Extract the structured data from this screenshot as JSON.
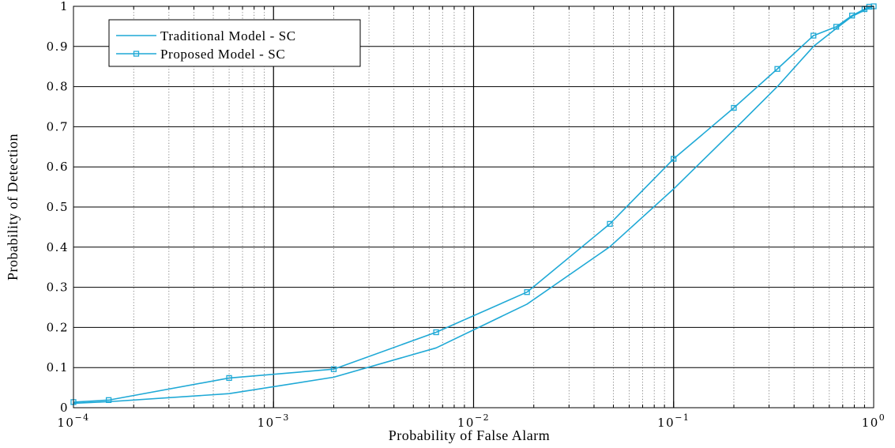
{
  "chart_data": {
    "type": "line",
    "xscale": "log",
    "xlim": [
      0.0001,
      1
    ],
    "ylim": [
      0,
      1
    ],
    "grid": true,
    "legend_position": "top-left",
    "xlabel": "Probability of False Alarm",
    "ylabel": "Probability of Detection",
    "x_tick_labels": [
      {
        "base": "10",
        "exp": "−4"
      },
      {
        "base": "10",
        "exp": "−3"
      },
      {
        "base": "10",
        "exp": "−2"
      },
      {
        "base": "10",
        "exp": "−1"
      },
      {
        "base": "10",
        "exp": "0"
      }
    ],
    "y_tick_labels": [
      "0",
      "0.1",
      "0.2",
      "0.3",
      "0.4",
      "0.5",
      "0.6",
      "0.7",
      "0.8",
      "0.9",
      "1"
    ],
    "colors": {
      "line": "#1fa9d6"
    },
    "series": [
      {
        "name": "Traditional Model - SC",
        "marker": "none",
        "points": [
          [
            0.0001,
            0.011
          ],
          [
            0.00015,
            0.015
          ],
          [
            0.0006,
            0.035
          ],
          [
            0.002,
            0.076
          ],
          [
            0.0065,
            0.149
          ],
          [
            0.0185,
            0.258
          ],
          [
            0.048,
            0.401
          ],
          [
            0.1,
            0.545
          ],
          [
            0.2,
            0.692
          ],
          [
            0.33,
            0.8
          ],
          [
            0.5,
            0.9
          ],
          [
            0.65,
            0.945
          ],
          [
            0.78,
            0.975
          ],
          [
            0.9,
            0.99
          ],
          [
            0.98,
            0.999
          ],
          [
            1.0,
            1.0
          ]
        ]
      },
      {
        "name": "Proposed Model - SC",
        "marker": "square",
        "points": [
          [
            0.0001,
            0.014
          ],
          [
            0.00015,
            0.019
          ],
          [
            0.0006,
            0.074
          ],
          [
            0.002,
            0.096
          ],
          [
            0.0065,
            0.188
          ],
          [
            0.0185,
            0.288
          ],
          [
            0.048,
            0.458
          ],
          [
            0.1,
            0.62
          ],
          [
            0.2,
            0.747
          ],
          [
            0.33,
            0.844
          ],
          [
            0.5,
            0.927
          ],
          [
            0.65,
            0.949
          ],
          [
            0.78,
            0.977
          ],
          [
            0.9,
            0.993
          ],
          [
            0.95,
            0.999
          ],
          [
            1.0,
            1.0
          ]
        ]
      }
    ]
  }
}
